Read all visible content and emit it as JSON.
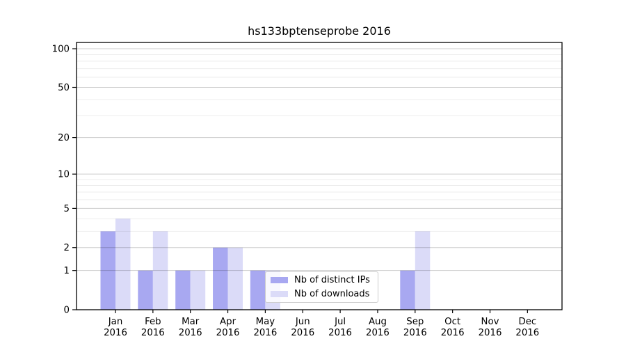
{
  "chart_data": {
    "type": "bar",
    "title": "hs133bptenseprobe 2016",
    "x_months": [
      "Jan",
      "Feb",
      "Mar",
      "Apr",
      "May",
      "Jun",
      "Jul",
      "Aug",
      "Sep",
      "Oct",
      "Nov",
      "Dec"
    ],
    "x_year": "2016",
    "categories": [
      "Jan 2016",
      "Feb 2016",
      "Mar 2016",
      "Apr 2016",
      "May 2016",
      "Jun 2016",
      "Jul 2016",
      "Aug 2016",
      "Sep 2016",
      "Oct 2016",
      "Nov 2016",
      "Dec 2016"
    ],
    "series": [
      {
        "name": "Nb of distinct IPs",
        "color": "#a8a8f1",
        "values": [
          3,
          1,
          1,
          2,
          1,
          0,
          0,
          0,
          1,
          0,
          0,
          0
        ]
      },
      {
        "name": "Nb of downloads",
        "color": "#dbdbf8",
        "values": [
          4,
          3,
          1,
          2,
          1,
          0,
          0,
          0,
          3,
          0,
          0,
          0
        ]
      }
    ],
    "y_axis": {
      "scale": "log1p",
      "major_ticks": [
        0,
        1,
        2,
        5,
        10,
        20,
        50,
        100
      ],
      "minor_gridlines": [
        3,
        4,
        6,
        7,
        8,
        9,
        30,
        40,
        60,
        70,
        80,
        90
      ],
      "ylim": [
        0,
        112
      ]
    },
    "xlabel": "",
    "ylabel": "",
    "grid": true,
    "legend_position": "lower center",
    "colors": {
      "major_grid": "#c9c9c9",
      "minor_grid": "#ededed",
      "axis": "#000000",
      "legend_border": "#cccccc"
    }
  }
}
